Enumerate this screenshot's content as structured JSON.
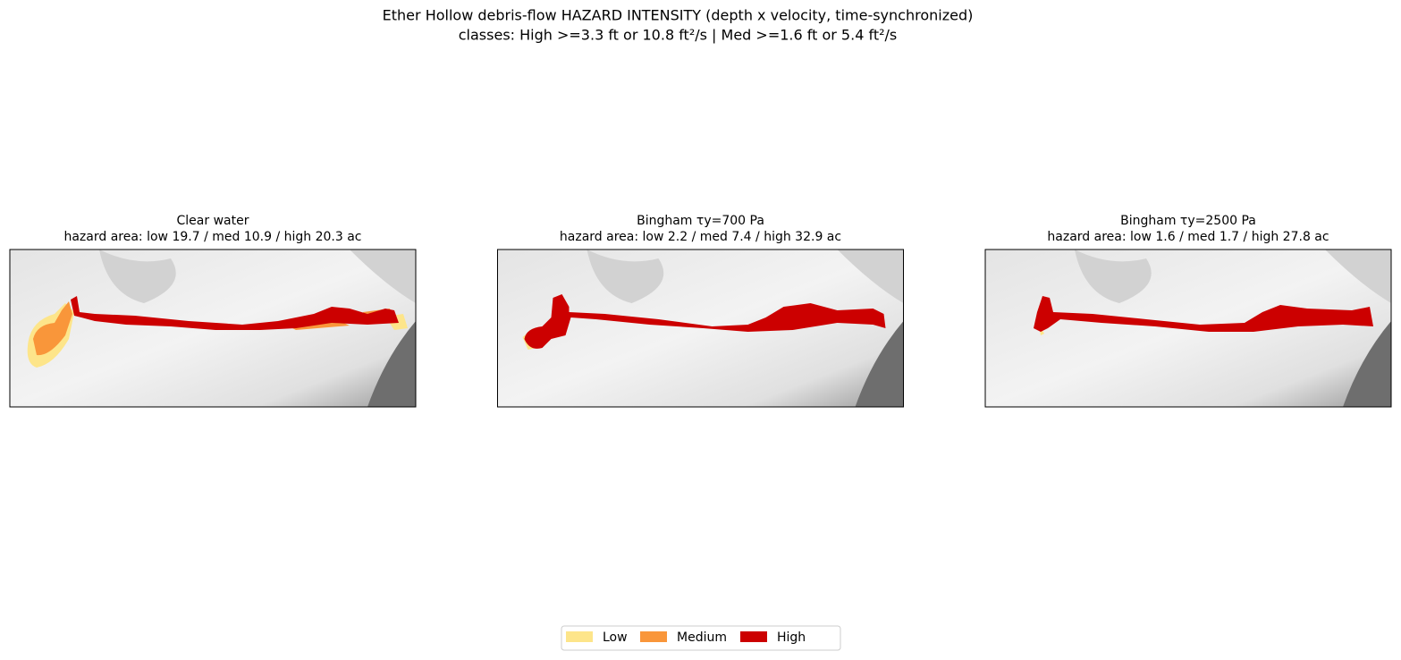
{
  "header": {
    "title": "Ether Hollow debris-flow HAZARD INTENSITY (depth x velocity, time-synchronized)",
    "subtitle": "classes: High >=3.3 ft or 10.8 ft²/s | Med >=1.6 ft or 5.4 ft²/s"
  },
  "panels": [
    {
      "title": "Clear water",
      "subtitle": "hazard area: low 19.7 / med 10.9 / high 20.3 ac"
    },
    {
      "title": "Bingham τy=700 Pa",
      "subtitle": "hazard area: low 2.2 / med 7.4 / high 32.9 ac"
    },
    {
      "title": "Bingham τy=2500 Pa",
      "subtitle": "hazard area: low 1.6 / med 1.7 / high 27.8 ac"
    }
  ],
  "legend": [
    {
      "label": "Low",
      "color": "#fde58a"
    },
    {
      "label": "Medium",
      "color": "#f9963a"
    },
    {
      "label": "High",
      "color": "#cc0000"
    }
  ]
}
